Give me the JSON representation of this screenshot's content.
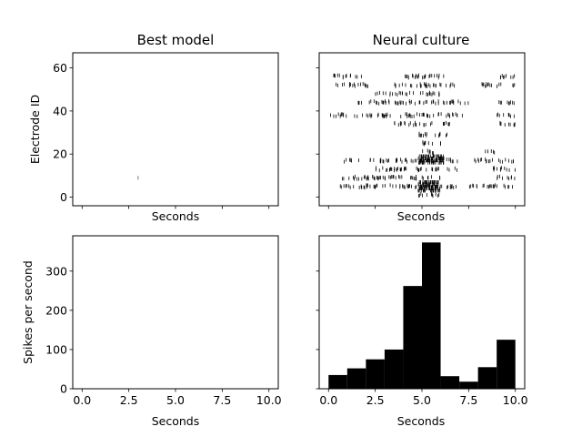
{
  "figure": {
    "background": "#ffffff",
    "ink": "#000000"
  },
  "chart_data": [
    {
      "id": "raster-model",
      "type": "scatter",
      "marker": "vertical-tick",
      "title": "Best model",
      "xlabel": "Seconds",
      "ylabel": "Electrode ID",
      "xlim": [
        -0.5,
        10.5
      ],
      "ylim": [
        -4,
        67
      ],
      "yticks": [
        0,
        20,
        40,
        60
      ],
      "xticks_visible": false,
      "spikes": [
        [
          3.0,
          9.0
        ]
      ]
    },
    {
      "id": "raster-culture",
      "type": "scatter",
      "marker": "vertical-tick",
      "title": "Neural culture",
      "xlabel": "Seconds",
      "ylabel": "",
      "xlim": [
        -0.5,
        10.5
      ],
      "ylim": [
        -4,
        67
      ],
      "yticks_visible": false,
      "xticks_visible": false,
      "rows": [
        {
          "electrode": 56,
          "ranges": [
            [
              0.2,
              1.8
            ],
            [
              3.8,
              6.5
            ],
            [
              9.0,
              10.0
            ]
          ]
        },
        {
          "electrode": 52,
          "ranges": [
            [
              0.3,
              2.2
            ],
            [
              3.5,
              6.8
            ],
            [
              8.2,
              10.0
            ]
          ]
        },
        {
          "electrode": 48,
          "ranges": [
            [
              2.5,
              6.0
            ]
          ]
        },
        {
          "electrode": 44,
          "ranges": [
            [
              1.5,
              7.5
            ],
            [
              9.0,
              10.0
            ]
          ]
        },
        {
          "electrode": 38,
          "ranges": [
            [
              0.0,
              7.2
            ],
            [
              9.0,
              10.0
            ]
          ]
        },
        {
          "electrode": 34,
          "ranges": [
            [
              3.5,
              6.5
            ],
            [
              9.0,
              10.0
            ]
          ]
        },
        {
          "electrode": 29,
          "ranges": [
            [
              4.8,
              6.6
            ]
          ]
        },
        {
          "electrode": 25,
          "ranges": [
            [
              5.0,
              6.0
            ]
          ]
        },
        {
          "electrode": 21,
          "ranges": [
            [
              5.0,
              5.8
            ],
            [
              8.3,
              8.9
            ]
          ]
        },
        {
          "electrode": 17,
          "ranges": [
            [
              0.8,
              7.0
            ],
            [
              7.8,
              10.0
            ]
          ]
        },
        {
          "electrode": 13,
          "ranges": [
            [
              2.5,
              7.0
            ],
            [
              8.8,
              10.0
            ]
          ]
        },
        {
          "electrode": 9,
          "ranges": [
            [
              0.5,
              6.0
            ],
            [
              9.0,
              10.0
            ]
          ]
        },
        {
          "electrode": 5,
          "ranges": [
            [
              0.5,
              7.0
            ],
            [
              7.5,
              10.0
            ]
          ]
        },
        {
          "electrode": 1,
          "ranges": [
            [
              4.8,
              6.0
            ]
          ]
        }
      ],
      "dense_bands": [
        {
          "x": [
            4.8,
            6.2
          ],
          "electrodes": [
            16,
            19
          ]
        },
        {
          "x": [
            4.8,
            6.0
          ],
          "electrodes": [
            3,
            7
          ]
        }
      ]
    },
    {
      "id": "hist-model",
      "type": "bar",
      "title": "",
      "xlabel": "Seconds",
      "ylabel": "Spikes per second",
      "xlim": [
        -0.5,
        10.5
      ],
      "ylim": [
        0,
        390
      ],
      "xticks": [
        0.0,
        2.5,
        5.0,
        7.5,
        10.0
      ],
      "xtick_labels": [
        "0.0",
        "2.5",
        "5.0",
        "7.5",
        "10.0"
      ],
      "yticks": [
        0,
        100,
        200,
        300
      ],
      "bin_edges": [
        0,
        1,
        2,
        3,
        4,
        5,
        6,
        7,
        8,
        9,
        10
      ],
      "values": [
        0,
        0,
        0,
        1,
        0,
        0,
        0,
        0,
        0,
        0
      ]
    },
    {
      "id": "hist-culture",
      "type": "bar",
      "title": "",
      "xlabel": "Seconds",
      "ylabel": "",
      "xlim": [
        -0.5,
        10.5
      ],
      "ylim": [
        0,
        390
      ],
      "xticks": [
        0.0,
        2.5,
        5.0,
        7.5,
        10.0
      ],
      "xtick_labels": [
        "0.0",
        "2.5",
        "5.0",
        "7.5",
        "10.0"
      ],
      "yticks_visible": false,
      "bin_edges": [
        0,
        1,
        2,
        3,
        4,
        5,
        6,
        7,
        8,
        9,
        10
      ],
      "values": [
        35,
        52,
        75,
        100,
        262,
        373,
        32,
        18,
        55,
        125
      ]
    }
  ]
}
